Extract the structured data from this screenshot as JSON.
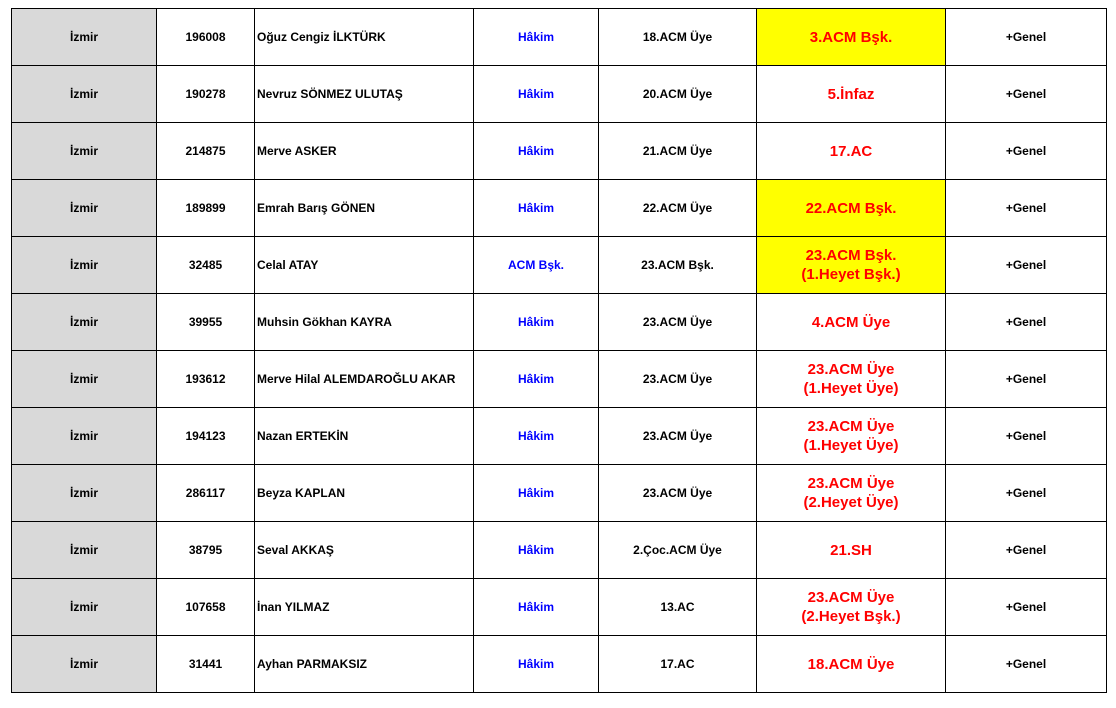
{
  "colors": {
    "city_bg": "#d9d9d9",
    "title": "#0000ff",
    "new_position": "#ff0000",
    "highlight": "#ffff00"
  },
  "rows": [
    {
      "city": "İzmir",
      "sicil": "196008",
      "name": "Oğuz Cengiz İLKTÜRK",
      "title": "Hâkim",
      "current": "18.ACM Üye",
      "new": [
        "3.ACM Bşk."
      ],
      "highlight": true,
      "note": "+Genel"
    },
    {
      "city": "İzmir",
      "sicil": "190278",
      "name": "Nevruz SÖNMEZ ULUTAŞ",
      "title": "Hâkim",
      "current": "20.ACM Üye",
      "new": [
        "5.İnfaz"
      ],
      "highlight": false,
      "note": "+Genel"
    },
    {
      "city": "İzmir",
      "sicil": "214875",
      "name": "Merve ASKER",
      "title": "Hâkim",
      "current": "21.ACM Üye",
      "new": [
        "17.AC"
      ],
      "highlight": false,
      "note": "+Genel"
    },
    {
      "city": "İzmir",
      "sicil": "189899",
      "name": "Emrah Barış GÖNEN",
      "title": "Hâkim",
      "current": "22.ACM Üye",
      "new": [
        "22.ACM Bşk."
      ],
      "highlight": true,
      "note": "+Genel"
    },
    {
      "city": "İzmir",
      "sicil": "32485",
      "name": "Celal ATAY",
      "title": "ACM Bşk.",
      "current": "23.ACM Bşk.",
      "new": [
        "23.ACM Bşk.",
        "(1.Heyet Bşk.)"
      ],
      "highlight": true,
      "note": "+Genel"
    },
    {
      "city": "İzmir",
      "sicil": "39955",
      "name": "Muhsin Gökhan KAYRA",
      "title": "Hâkim",
      "current": "23.ACM Üye",
      "new": [
        "4.ACM Üye"
      ],
      "highlight": false,
      "note": "+Genel"
    },
    {
      "city": "İzmir",
      "sicil": "193612",
      "name": "Merve Hilal ALEMDAROĞLU AKAR",
      "title": "Hâkim",
      "current": "23.ACM Üye",
      "new": [
        "23.ACM Üye",
        "(1.Heyet Üye)"
      ],
      "highlight": false,
      "note": "+Genel"
    },
    {
      "city": "İzmir",
      "sicil": "194123",
      "name": "Nazan ERTEKİN",
      "title": "Hâkim",
      "current": "23.ACM Üye",
      "new": [
        "23.ACM Üye",
        "(1.Heyet Üye)"
      ],
      "highlight": false,
      "note": "+Genel"
    },
    {
      "city": "İzmir",
      "sicil": "286117",
      "name": "Beyza KAPLAN",
      "title": "Hâkim",
      "current": "23.ACM Üye",
      "new": [
        "23.ACM Üye",
        "(2.Heyet Üye)"
      ],
      "highlight": false,
      "note": "+Genel"
    },
    {
      "city": "İzmir",
      "sicil": "38795",
      "name": "Seval AKKAŞ",
      "title": "Hâkim",
      "current": "2.Çoc.ACM Üye",
      "new": [
        "21.SH"
      ],
      "highlight": false,
      "note": "+Genel"
    },
    {
      "city": "İzmir",
      "sicil": "107658",
      "name": "İnan YILMAZ",
      "title": "Hâkim",
      "current": "13.AC",
      "new": [
        "23.ACM Üye",
        "(2.Heyet Bşk.)"
      ],
      "highlight": false,
      "note": "+Genel"
    },
    {
      "city": "İzmir",
      "sicil": "31441",
      "name": "Ayhan PARMAKSIZ",
      "title": "Hâkim",
      "current": "17.AC",
      "new": [
        "18.ACM Üye"
      ],
      "highlight": false,
      "note": "+Genel"
    }
  ]
}
